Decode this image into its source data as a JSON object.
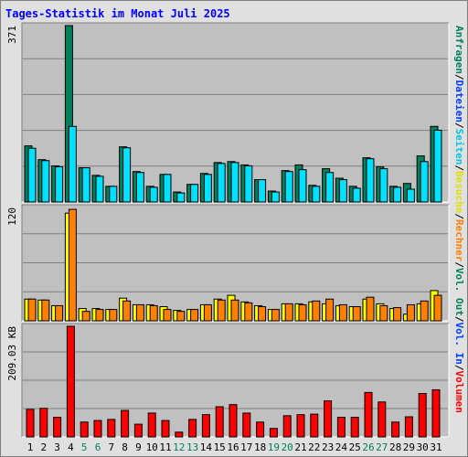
{
  "chart_data": {
    "type": "bar",
    "title": "Tages-Statistik im Monat Juli 2025",
    "categories": [
      "1",
      "2",
      "3",
      "4",
      "5",
      "6",
      "7",
      "8",
      "9",
      "10",
      "11",
      "12",
      "13",
      "14",
      "15",
      "16",
      "17",
      "18",
      "19",
      "20",
      "21",
      "22",
      "23",
      "24",
      "25",
      "26",
      "27",
      "28",
      "29",
      "30",
      "31"
    ],
    "category_colors": [
      "#000000",
      "#000000",
      "#000000",
      "#000000",
      "#00805c",
      "#00805c",
      "#000000",
      "#000000",
      "#000000",
      "#000000",
      "#000000",
      "#00805c",
      "#00805c",
      "#000000",
      "#000000",
      "#000000",
      "#000000",
      "#000000",
      "#00805c",
      "#00805c",
      "#000000",
      "#000000",
      "#000000",
      "#000000",
      "#000000",
      "#00805c",
      "#00805c",
      "#000000",
      "#000000",
      "#000000",
      "#000000"
    ],
    "side_labels": [
      {
        "text": "Anfragen",
        "color": "#00805c"
      },
      {
        "text": "/",
        "color": "#000000"
      },
      {
        "text": "Dateien",
        "color": "#0040ff"
      },
      {
        "text": "/",
        "color": "#000000"
      },
      {
        "text": "Seiten",
        "color": "#00c8e0"
      },
      {
        "text": "/",
        "color": "#000000"
      },
      {
        "text": "Besuche",
        "color": "#e0e000"
      },
      {
        "text": "/",
        "color": "#000000"
      },
      {
        "text": "Rechner",
        "color": "#ff8000"
      },
      {
        "text": "/",
        "color": "#000000"
      },
      {
        "text": "Vol. Out",
        "color": "#00805c"
      },
      {
        "text": "/",
        "color": "#000000"
      },
      {
        "text": "Vol. In",
        "color": "#0040ff"
      },
      {
        "text": "/",
        "color": "#000000"
      },
      {
        "text": "Volumen",
        "color": "#ff0000"
      }
    ],
    "panels": [
      {
        "ylim": [
          0,
          371
        ],
        "yticks": [
          371
        ],
        "grid_divisions": 5,
        "series": [
          {
            "name": "Anfragen",
            "color": "#00805c",
            "values": [
              118,
              89,
              76,
              371,
              72,
              56,
              33,
              116,
              64,
              33,
              58,
              21,
              37,
              60,
              83,
              85,
              78,
              47,
              23,
              66,
              78,
              35,
              70,
              50,
              33,
              93,
              74,
              33,
              39,
              97,
              159
            ]
          },
          {
            "name": "Seiten",
            "color": "#00e0ff",
            "values": [
              113,
              87,
              74,
              159,
              72,
              54,
              33,
              114,
              62,
              31,
              58,
              19,
              37,
              58,
              81,
              83,
              76,
              47,
              21,
              64,
              68,
              33,
              62,
              47,
              29,
              91,
              70,
              31,
              27,
              85,
              151
            ]
          }
        ]
      },
      {
        "ylim": [
          0,
          120
        ],
        "yticks": [
          120
        ],
        "grid_divisions": 4,
        "series": [
          {
            "name": "Besuche",
            "color": "#ffff00",
            "values": [
              23,
              22,
              16,
              114,
              13,
              13,
              12,
              24,
              17,
              17,
              15,
              11,
              12,
              17,
              23,
              27,
              20,
              16,
              12,
              18,
              18,
              20,
              18,
              16,
              15,
              23,
              18,
              13,
              7,
              18,
              32
            ]
          },
          {
            "name": "Rechner",
            "color": "#ff8000",
            "values": [
              23,
              22,
              16,
              118,
              10,
              12,
              12,
              21,
              17,
              16,
              12,
              10,
              12,
              17,
              22,
              22,
              19,
              15,
              12,
              18,
              17,
              21,
              23,
              17,
              15,
              25,
              16,
              14,
              17,
              21,
              27
            ]
          }
        ]
      },
      {
        "ylim": [
          0,
          209.03
        ],
        "yticks": [
          {
            "value": 209.03,
            "label": "209.03 KB"
          }
        ],
        "grid_divisions": 4,
        "series": [
          {
            "name": "Volumen",
            "color": "#ff0000",
            "values": [
              52,
              54,
              37,
              209.03,
              28,
              31,
              33,
              50,
              24,
              45,
              31,
              9,
              33,
              42,
              57,
              61,
              45,
              28,
              16,
              40,
              42,
              43,
              68,
              37,
              37,
              84,
              66,
              28,
              38,
              82,
              89
            ]
          }
        ]
      }
    ]
  }
}
